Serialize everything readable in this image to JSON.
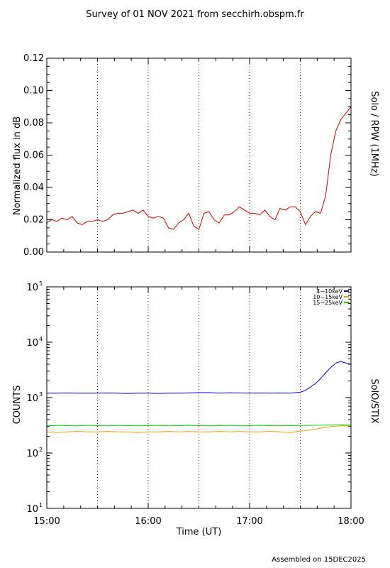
{
  "title": "Survey of 01 NOV 2021 from secchirh.obspm.fr",
  "footer": "Assembled on  15DEC2025",
  "chart_data": [
    {
      "type": "line",
      "ylabel": "Normalized flux in dB",
      "right_label": "Solo / RPW (1MHz)",
      "xlim": [
        15.0,
        18.0
      ],
      "ylim": [
        0.0,
        0.12
      ],
      "yticks": [
        "0.00",
        "0.02",
        "0.04",
        "0.06",
        "0.08",
        "0.10",
        "0.12"
      ],
      "yticks_values": [
        0.0,
        0.02,
        0.04,
        0.06,
        0.08,
        0.1,
        0.12
      ],
      "vlines": [
        15.5,
        16.0,
        16.5,
        17.0,
        17.5
      ],
      "series": [
        {
          "color": "#cc0000",
          "x": [
            15.0,
            15.05,
            15.1,
            15.15,
            15.2,
            15.25,
            15.3,
            15.35,
            15.4,
            15.45,
            15.5,
            15.55,
            15.6,
            15.65,
            15.7,
            15.75,
            15.8,
            15.85,
            15.9,
            15.95,
            16.0,
            16.05,
            16.1,
            16.15,
            16.2,
            16.25,
            16.3,
            16.35,
            16.4,
            16.45,
            16.5,
            16.55,
            16.6,
            16.65,
            16.7,
            16.75,
            16.8,
            16.85,
            16.9,
            16.95,
            17.0,
            17.05,
            17.1,
            17.15,
            17.2,
            17.25,
            17.3,
            17.35,
            17.4,
            17.45,
            17.5,
            17.55,
            17.6,
            17.65,
            17.7,
            17.75,
            17.8,
            17.85,
            17.9,
            17.95,
            18.0
          ],
          "y": [
            0.018,
            0.02,
            0.019,
            0.021,
            0.02,
            0.022,
            0.018,
            0.017,
            0.019,
            0.019,
            0.02,
            0.019,
            0.02,
            0.023,
            0.024,
            0.024,
            0.025,
            0.026,
            0.024,
            0.026,
            0.022,
            0.021,
            0.022,
            0.021,
            0.015,
            0.014,
            0.018,
            0.02,
            0.024,
            0.016,
            0.014,
            0.024,
            0.025,
            0.02,
            0.018,
            0.023,
            0.023,
            0.025,
            0.028,
            0.026,
            0.024,
            0.024,
            0.023,
            0.026,
            0.022,
            0.02,
            0.027,
            0.026,
            0.028,
            0.028,
            0.025,
            0.017,
            0.022,
            0.025,
            0.024,
            0.035,
            0.06,
            0.075,
            0.082,
            0.086,
            0.09
          ]
        }
      ]
    },
    {
      "type": "line",
      "ylabel": "COUNTS",
      "xlabel": "Time (UT)",
      "right_label": "SolO/STIX",
      "xlim": [
        15.0,
        18.0
      ],
      "ylim": [
        10,
        100000
      ],
      "yscale": "log",
      "ytick_labels": [
        {
          "base": "10",
          "exp": "1"
        },
        {
          "base": "10",
          "exp": "2"
        },
        {
          "base": "10",
          "exp": "3"
        },
        {
          "base": "10",
          "exp": "4"
        },
        {
          "base": "10",
          "exp": "5"
        }
      ],
      "yticks_values": [
        10,
        100,
        1000,
        10000,
        100000
      ],
      "xticks": [
        "15:00",
        "16:00",
        "17:00",
        "18:00"
      ],
      "xticks_values": [
        15.0,
        16.0,
        17.0,
        18.0
      ],
      "vlines": [
        15.5,
        16.0,
        16.5,
        17.0,
        17.5
      ],
      "legend_position": "top-right",
      "series": [
        {
          "name": "4−10keV",
          "color": "#0000cc",
          "x": [
            15.0,
            15.1,
            15.2,
            15.3,
            15.4,
            15.5,
            15.6,
            15.7,
            15.8,
            15.9,
            16.0,
            16.1,
            16.2,
            16.3,
            16.4,
            16.5,
            16.6,
            16.7,
            16.8,
            16.9,
            17.0,
            17.1,
            17.2,
            17.3,
            17.4,
            17.5,
            17.55,
            17.6,
            17.65,
            17.7,
            17.75,
            17.8,
            17.85,
            17.9,
            17.95,
            18.0
          ],
          "y": [
            1200,
            1200,
            1210,
            1200,
            1200,
            1200,
            1210,
            1200,
            1190,
            1200,
            1200,
            1190,
            1200,
            1200,
            1210,
            1230,
            1230,
            1200,
            1220,
            1210,
            1200,
            1210,
            1200,
            1210,
            1200,
            1250,
            1350,
            1550,
            1800,
            2200,
            2800,
            3500,
            4200,
            4500,
            4200,
            4000
          ]
        },
        {
          "name": "10−15keV",
          "color": "#e6a000",
          "x": [
            15.0,
            15.1,
            15.2,
            15.3,
            15.4,
            15.5,
            15.6,
            15.7,
            15.8,
            15.9,
            16.0,
            16.1,
            16.2,
            16.3,
            16.4,
            16.5,
            16.6,
            16.7,
            16.8,
            16.9,
            17.0,
            17.1,
            17.2,
            17.3,
            17.4,
            17.5,
            17.6,
            17.7,
            17.8,
            17.9,
            18.0
          ],
          "y": [
            240,
            235,
            240,
            245,
            240,
            240,
            245,
            240,
            240,
            235,
            240,
            240,
            245,
            240,
            245,
            240,
            240,
            245,
            240,
            245,
            240,
            240,
            245,
            240,
            235,
            250,
            260,
            280,
            300,
            310,
            310
          ]
        },
        {
          "name": "15−25keV",
          "color": "#00dd00",
          "x": [
            15.0,
            15.1,
            15.2,
            15.3,
            15.4,
            15.5,
            15.6,
            15.7,
            15.8,
            15.9,
            16.0,
            16.1,
            16.2,
            16.3,
            16.4,
            16.5,
            16.6,
            16.7,
            16.8,
            16.9,
            17.0,
            17.1,
            17.2,
            17.3,
            17.4,
            17.5,
            17.6,
            17.7,
            17.8,
            17.9,
            18.0
          ],
          "y": [
            310,
            315,
            312,
            310,
            315,
            312,
            310,
            315,
            312,
            310,
            312,
            315,
            310,
            312,
            315,
            312,
            310,
            312,
            315,
            310,
            312,
            315,
            312,
            310,
            312,
            315,
            315,
            318,
            320,
            322,
            320
          ]
        }
      ]
    }
  ]
}
